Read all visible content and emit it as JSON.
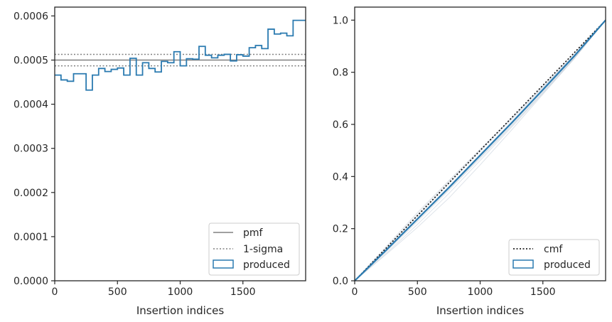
{
  "chart_data": [
    {
      "type": "step",
      "xlabel": "Insertion indices",
      "xlim": [
        0,
        2000
      ],
      "ylim": [
        0,
        0.00062
      ],
      "xticks": [
        0,
        500,
        1000,
        1500
      ],
      "yticks": [
        "0.0000",
        "0.0001",
        "0.0002",
        "0.0003",
        "0.0004",
        "0.0005",
        "0.0006"
      ],
      "yticks_values": [
        0,
        0.0001,
        0.0002,
        0.0003,
        0.0004,
        0.0005,
        0.0006
      ],
      "reference_lines": {
        "pmf": 0.0005,
        "sigma_upper": 0.000513,
        "sigma_lower": 0.000487
      },
      "bin_width": 50,
      "produced": [
        0.000466,
        0.000455,
        0.000452,
        0.000469,
        0.000469,
        0.000432,
        0.000466,
        0.000481,
        0.000474,
        0.000479,
        0.000482,
        0.000466,
        0.000504,
        0.000466,
        0.000494,
        0.000481,
        0.000473,
        0.000497,
        0.000494,
        0.000519,
        0.000487,
        0.000503,
        0.000502,
        0.000531,
        0.000511,
        0.000505,
        0.000511,
        0.000513,
        0.000498,
        0.000512,
        0.000509,
        0.000528,
        0.000533,
        0.000526,
        0.00057,
        0.000559,
        0.000561,
        0.000555,
        0.00059,
        0.00059
      ],
      "legend": {
        "position": "lower right",
        "entries": [
          "pmf",
          "1-sigma",
          "produced"
        ]
      },
      "colors": {
        "produced": "#2a7ab0",
        "pmf": "#808080",
        "sigma": "#808080"
      }
    },
    {
      "type": "line",
      "xlabel": "Insertion indices",
      "xlim": [
        0,
        2000
      ],
      "ylim": [
        0,
        1.05
      ],
      "xticks": [
        0,
        500,
        1000,
        1500
      ],
      "yticks": [
        "0.0",
        "0.2",
        "0.4",
        "0.6",
        "0.8",
        "1.0"
      ],
      "yticks_values": [
        0,
        0.2,
        0.4,
        0.6,
        0.8,
        1.0
      ],
      "cmf": {
        "x": [
          0,
          2000
        ],
        "y": [
          0,
          1
        ]
      },
      "produced": {
        "x": [
          0,
          250,
          500,
          750,
          1000,
          1250,
          1500,
          1750,
          2000
        ],
        "y": [
          0,
          0.117,
          0.237,
          0.357,
          0.481,
          0.605,
          0.733,
          0.862,
          1.0
        ]
      },
      "legend": {
        "position": "lower right",
        "entries": [
          "cmf",
          "produced"
        ]
      },
      "colors": {
        "produced": "#2a7ab0",
        "cmf": "#000000",
        "band": "#b8c4d0"
      }
    }
  ]
}
